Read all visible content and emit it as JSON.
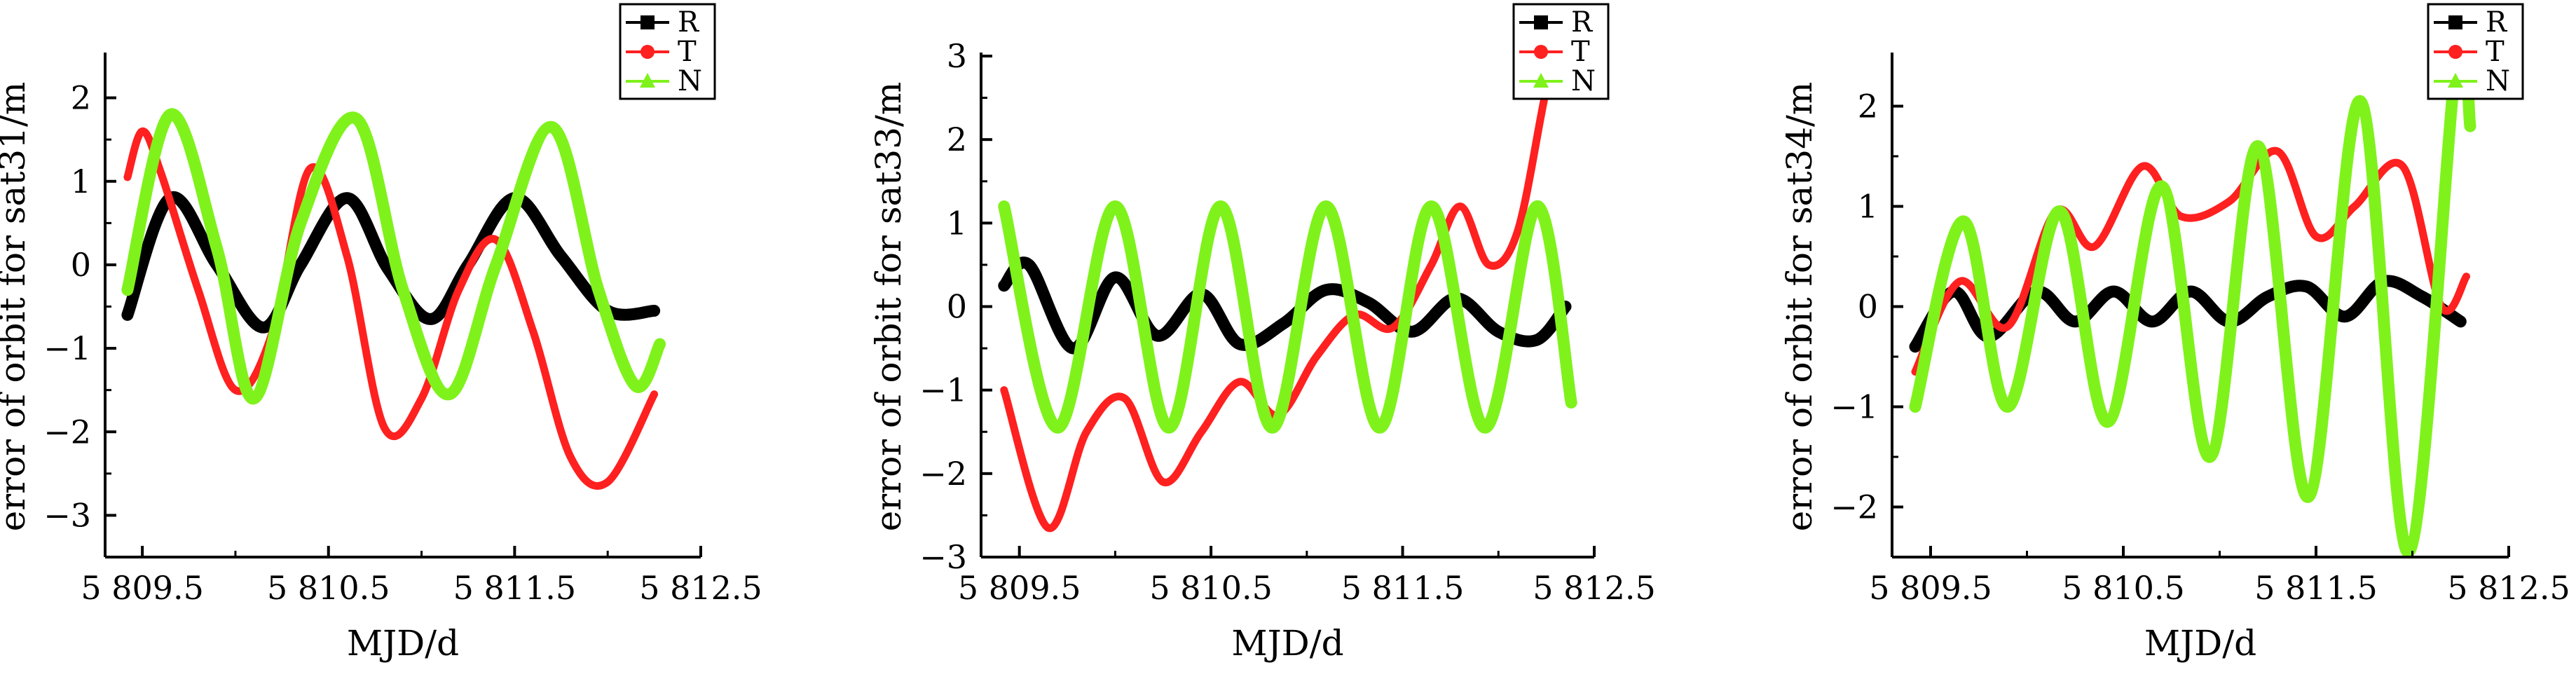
{
  "chart_data": [
    {
      "type": "line",
      "xlabel": "MJD/d",
      "ylabel": "error of orbit for sat31/m",
      "xlim": [
        58093,
        58125
      ],
      "ylim": [
        -3.5,
        2.5
      ],
      "xticks": [
        58095,
        58105,
        58115,
        58125
      ],
      "xtick_labels": [
        "5 809.5",
        "5 810.5",
        "5 811.5",
        "5 812.5"
      ],
      "yticks": [
        -3,
        -2,
        -1,
        0,
        1,
        2
      ],
      "ytick_labels": [
        "−3",
        "−2",
        "−1",
        "0",
        "1",
        "2"
      ],
      "legend_position": "top-right",
      "series": [
        {
          "name": "R",
          "color": "#000000",
          "marker": "square",
          "x": [
            58094.2,
            58096.5,
            58099.0,
            58101.5,
            58103.5,
            58106.0,
            58108.2,
            58110.5,
            58112.5,
            58115.0,
            58117.5,
            58120.0,
            58122.5
          ],
          "y": [
            -0.6,
            0.8,
            0.0,
            -0.75,
            0.0,
            0.8,
            -0.05,
            -0.65,
            0.0,
            0.8,
            0.1,
            -0.55,
            -0.55
          ]
        },
        {
          "name": "T",
          "color": "#ff2020",
          "marker": "circle",
          "x": [
            58094.2,
            58095.0,
            58096.0,
            58098.0,
            58100.0,
            58102.0,
            58104.0,
            58106.0,
            58108.0,
            58110.0,
            58112.0,
            58114.0,
            58116.0,
            58118.0,
            58120.0,
            58122.5
          ],
          "y": [
            1.05,
            1.6,
            1.1,
            -0.3,
            -1.5,
            -0.8,
            1.15,
            0.1,
            -1.95,
            -1.6,
            -0.3,
            0.3,
            -0.8,
            -2.3,
            -2.6,
            -1.55
          ]
        },
        {
          "name": "N",
          "color": "#7ff21b",
          "marker": "triangle",
          "x": [
            58094.2,
            58096.5,
            58099.0,
            58101.0,
            58103.5,
            58106.5,
            58109.0,
            58111.5,
            58114.0,
            58117.0,
            58119.5,
            58121.5,
            58122.8
          ],
          "y": [
            -0.3,
            1.8,
            0.2,
            -1.6,
            0.5,
            1.75,
            -0.3,
            -1.55,
            0.0,
            1.65,
            -0.3,
            -1.45,
            -0.95
          ]
        }
      ]
    },
    {
      "type": "line",
      "xlabel": "MJD/d",
      "ylabel": "error of orbit for sat33/m",
      "xlim": [
        58093,
        58125
      ],
      "ylim": [
        -3,
        3
      ],
      "xticks": [
        58095,
        58105,
        58115,
        58125
      ],
      "xtick_labels": [
        "5 809.5",
        "5 810.5",
        "5 811.5",
        "5 812.5"
      ],
      "yticks": [
        -3,
        -2,
        -1,
        0,
        1,
        2,
        3
      ],
      "ytick_labels": [
        "−3",
        "−2",
        "−1",
        "0",
        "1",
        "2",
        "3"
      ],
      "legend_position": "top-right",
      "series": [
        {
          "name": "R",
          "color": "#000000",
          "marker": "square",
          "x": [
            58094.2,
            58095.5,
            58097.8,
            58100.0,
            58102.2,
            58104.5,
            58106.5,
            58108.8,
            58111.0,
            58113.2,
            58115.5,
            58117.8,
            58120.0,
            58122.0,
            58123.5
          ],
          "y": [
            0.25,
            0.5,
            -0.5,
            0.35,
            -0.35,
            0.15,
            -0.45,
            -0.2,
            0.2,
            0.05,
            -0.3,
            0.1,
            -0.3,
            -0.4,
            0.0
          ]
        },
        {
          "name": "T",
          "color": "#ff2020",
          "marker": "circle",
          "x": [
            58094.2,
            58096.5,
            58098.5,
            58100.5,
            58102.5,
            58104.5,
            58106.5,
            58108.5,
            58110.5,
            58112.5,
            58114.5,
            58116.5,
            58118.0,
            58119.5,
            58121.0,
            58122.5,
            58123.2
          ],
          "y": [
            -1.0,
            -2.65,
            -1.5,
            -1.1,
            -2.1,
            -1.5,
            -0.9,
            -1.3,
            -0.6,
            -0.1,
            -0.25,
            0.5,
            1.2,
            0.5,
            0.9,
            2.6,
            3.0
          ]
        },
        {
          "name": "N",
          "color": "#7ff21b",
          "marker": "triangle",
          "x": [
            58094.2,
            58097.0,
            58100.0,
            58102.8,
            58105.5,
            58108.2,
            58111.0,
            58113.8,
            58116.5,
            58119.3,
            58122.0,
            58123.8
          ],
          "y": [
            1.2,
            -1.45,
            1.2,
            -1.45,
            1.2,
            -1.45,
            1.2,
            -1.45,
            1.2,
            -1.45,
            1.2,
            -1.15
          ]
        }
      ]
    },
    {
      "type": "line",
      "xlabel": "MJD/d",
      "ylabel": "error of orbit for sat34/m",
      "xlim": [
        58093,
        58125
      ],
      "ylim": [
        -2.5,
        2.5
      ],
      "xticks": [
        58095,
        58105,
        58115,
        58125
      ],
      "xtick_labels": [
        "5 809.5",
        "5 810.5",
        "5 811.5",
        "5 812.5"
      ],
      "yticks": [
        -2,
        -1,
        0,
        1,
        2
      ],
      "ytick_labels": [
        "−2",
        "−1",
        "0",
        "1",
        "2"
      ],
      "legend_position": "top-right",
      "series": [
        {
          "name": "R",
          "color": "#000000",
          "marker": "square",
          "x": [
            58094.2,
            58096.2,
            58098.0,
            58100.5,
            58102.5,
            58104.5,
            58106.5,
            58108.5,
            58110.5,
            58112.5,
            58114.5,
            58116.5,
            58118.5,
            58120.5,
            58122.5
          ],
          "y": [
            -0.4,
            0.15,
            -0.3,
            0.15,
            -0.15,
            0.15,
            -0.15,
            0.15,
            -0.15,
            0.1,
            0.2,
            -0.1,
            0.25,
            0.1,
            -0.15
          ]
        },
        {
          "name": "T",
          "color": "#ff2020",
          "marker": "circle",
          "x": [
            58094.2,
            58096.5,
            58099.0,
            58101.5,
            58103.5,
            58106.0,
            58108.0,
            58110.5,
            58113.0,
            58115.0,
            58117.0,
            58119.5,
            58121.5,
            58122.8
          ],
          "y": [
            -0.65,
            0.25,
            -0.2,
            0.95,
            0.6,
            1.4,
            0.9,
            1.05,
            1.55,
            0.7,
            1.0,
            1.4,
            0.0,
            0.3
          ]
        },
        {
          "name": "N",
          "color": "#7ff21b",
          "marker": "triangle",
          "x": [
            58094.2,
            58096.7,
            58099.0,
            58101.7,
            58104.2,
            58107.0,
            58109.5,
            58112.0,
            58114.6,
            58117.3,
            58119.8,
            58122.3,
            58123.0
          ],
          "y": [
            -1.0,
            0.85,
            -1.0,
            0.95,
            -1.15,
            1.2,
            -1.5,
            1.6,
            -1.9,
            2.05,
            -2.45,
            2.5,
            1.8
          ]
        }
      ]
    }
  ]
}
